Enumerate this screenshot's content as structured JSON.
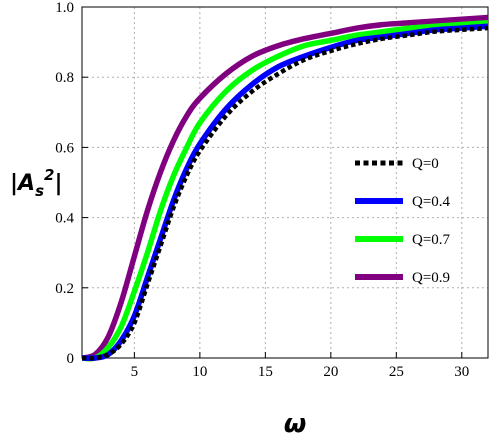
{
  "chart_data": {
    "type": "line",
    "xlabel": "ω",
    "ylabel_base": "|A",
    "ylabel_sub": "s",
    "ylabel_sup": "2",
    "ylabel_end": "|",
    "xlim": [
      1,
      32
    ],
    "ylim": [
      0,
      1.0
    ],
    "x_ticks": [
      5,
      10,
      15,
      20,
      25,
      30
    ],
    "x_tick_labels": [
      "5",
      "10",
      "15",
      "20",
      "25",
      "30"
    ],
    "y_ticks": [
      0,
      0.2,
      0.4,
      0.6,
      0.8,
      1.0
    ],
    "y_tick_labels": [
      "0",
      "0.2",
      "0.4",
      "0.6",
      "0.8",
      "1.0"
    ],
    "grid": true,
    "legend_position": "center-right",
    "series": [
      {
        "name": "Q=0",
        "color": "#000000",
        "style": "dotted",
        "x": [
          1,
          2,
          3,
          4,
          5,
          6,
          7,
          8,
          9,
          10,
          12,
          14,
          16,
          18,
          20,
          22,
          24,
          26,
          28,
          30,
          32
        ],
        "y": [
          0.0,
          0.0,
          0.01,
          0.04,
          0.1,
          0.21,
          0.32,
          0.43,
          0.52,
          0.59,
          0.69,
          0.76,
          0.81,
          0.85,
          0.875,
          0.895,
          0.91,
          0.92,
          0.93,
          0.935,
          0.94
        ]
      },
      {
        "name": "Q=0.4",
        "color": "#0000ff",
        "style": "solid",
        "x": [
          1,
          2,
          3,
          4,
          5,
          6,
          7,
          8,
          9,
          10,
          12,
          14,
          16,
          18,
          20,
          22,
          24,
          26,
          28,
          30,
          32
        ],
        "y": [
          0.0,
          0.0,
          0.01,
          0.05,
          0.12,
          0.23,
          0.34,
          0.45,
          0.54,
          0.61,
          0.71,
          0.78,
          0.83,
          0.86,
          0.885,
          0.905,
          0.915,
          0.925,
          0.935,
          0.94,
          0.945
        ]
      },
      {
        "name": "Q=0.7",
        "color": "#00ff00",
        "style": "solid",
        "x": [
          1,
          2,
          3,
          4,
          5,
          6,
          7,
          8,
          9,
          10,
          12,
          14,
          16,
          18,
          20,
          22,
          24,
          26,
          28,
          30,
          32
        ],
        "y": [
          0.0,
          0.0,
          0.03,
          0.09,
          0.19,
          0.3,
          0.42,
          0.52,
          0.6,
          0.67,
          0.76,
          0.82,
          0.86,
          0.89,
          0.905,
          0.92,
          0.93,
          0.94,
          0.945,
          0.95,
          0.955
        ]
      },
      {
        "name": "Q=0.9",
        "color": "#800080",
        "style": "solid",
        "x": [
          1,
          2,
          3,
          4,
          5,
          6,
          7,
          8,
          9,
          10,
          12,
          14,
          16,
          18,
          20,
          22,
          24,
          26,
          28,
          30,
          32
        ],
        "y": [
          0.0,
          0.01,
          0.06,
          0.16,
          0.29,
          0.42,
          0.53,
          0.62,
          0.69,
          0.74,
          0.81,
          0.86,
          0.89,
          0.91,
          0.925,
          0.94,
          0.95,
          0.955,
          0.96,
          0.965,
          0.97
        ]
      }
    ]
  }
}
